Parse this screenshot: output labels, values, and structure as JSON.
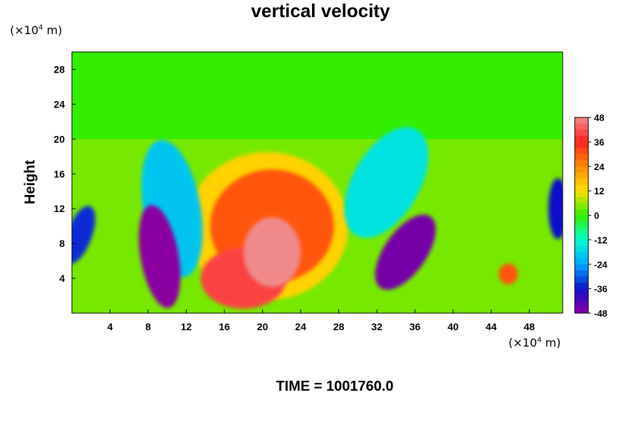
{
  "chart_data": {
    "type": "heatmap",
    "title": "vertical velocity",
    "ylabel": "Height",
    "xlabel": "",
    "x_unit_label": "(×10^4 m)",
    "y_unit_label": "(×10^4 m)",
    "footer": "TIME = 1001760.0",
    "xlim": [
      0,
      51.5
    ],
    "ylim": [
      0,
      30
    ],
    "x_ticks": [
      4,
      8,
      12,
      16,
      20,
      24,
      28,
      32,
      36,
      40,
      44,
      48
    ],
    "y_ticks": [
      4,
      8,
      12,
      16,
      20,
      24,
      28
    ],
    "colorbar": {
      "min": -48,
      "max": 48,
      "ticks": [
        48,
        36,
        24,
        12,
        0,
        -12,
        -24,
        -36,
        -48
      ],
      "colors": [
        "#f08a8a",
        "#ff2020",
        "#ff8a00",
        "#ffe000",
        "#33ee00",
        "#00ffd0",
        "#00aaff",
        "#1010cc",
        "#8a00a0"
      ]
    },
    "field_features": [
      {
        "name": "updraft-core",
        "x": 21,
        "y": 7,
        "value": 48
      },
      {
        "name": "updraft-shoulder",
        "x": 18,
        "y": 4,
        "value": 40
      },
      {
        "name": "updraft-plume",
        "x": 21,
        "y": 10,
        "value": 30
      },
      {
        "name": "updraft-halo",
        "x": 20.5,
        "y": 10,
        "value": 14
      },
      {
        "name": "downdraft-west",
        "x": 9.2,
        "y": 6.5,
        "value": -48
      },
      {
        "name": "downdraft-east",
        "x": 35,
        "y": 7,
        "value": -46
      },
      {
        "name": "downdraft-left-edge",
        "x": 0.8,
        "y": 9,
        "value": -34
      },
      {
        "name": "downdraft-right-edge",
        "x": 51,
        "y": 12,
        "value": -36
      },
      {
        "name": "cyan-band-west",
        "x": 10.5,
        "y": 12,
        "value": -20
      },
      {
        "name": "cyan-band-east",
        "x": 33,
        "y": 15,
        "value": -16
      },
      {
        "name": "updraft-small-east",
        "x": 45.8,
        "y": 4.5,
        "value": 30
      },
      {
        "name": "upper-layer",
        "x": 25,
        "y": 25,
        "value": 0
      }
    ]
  }
}
